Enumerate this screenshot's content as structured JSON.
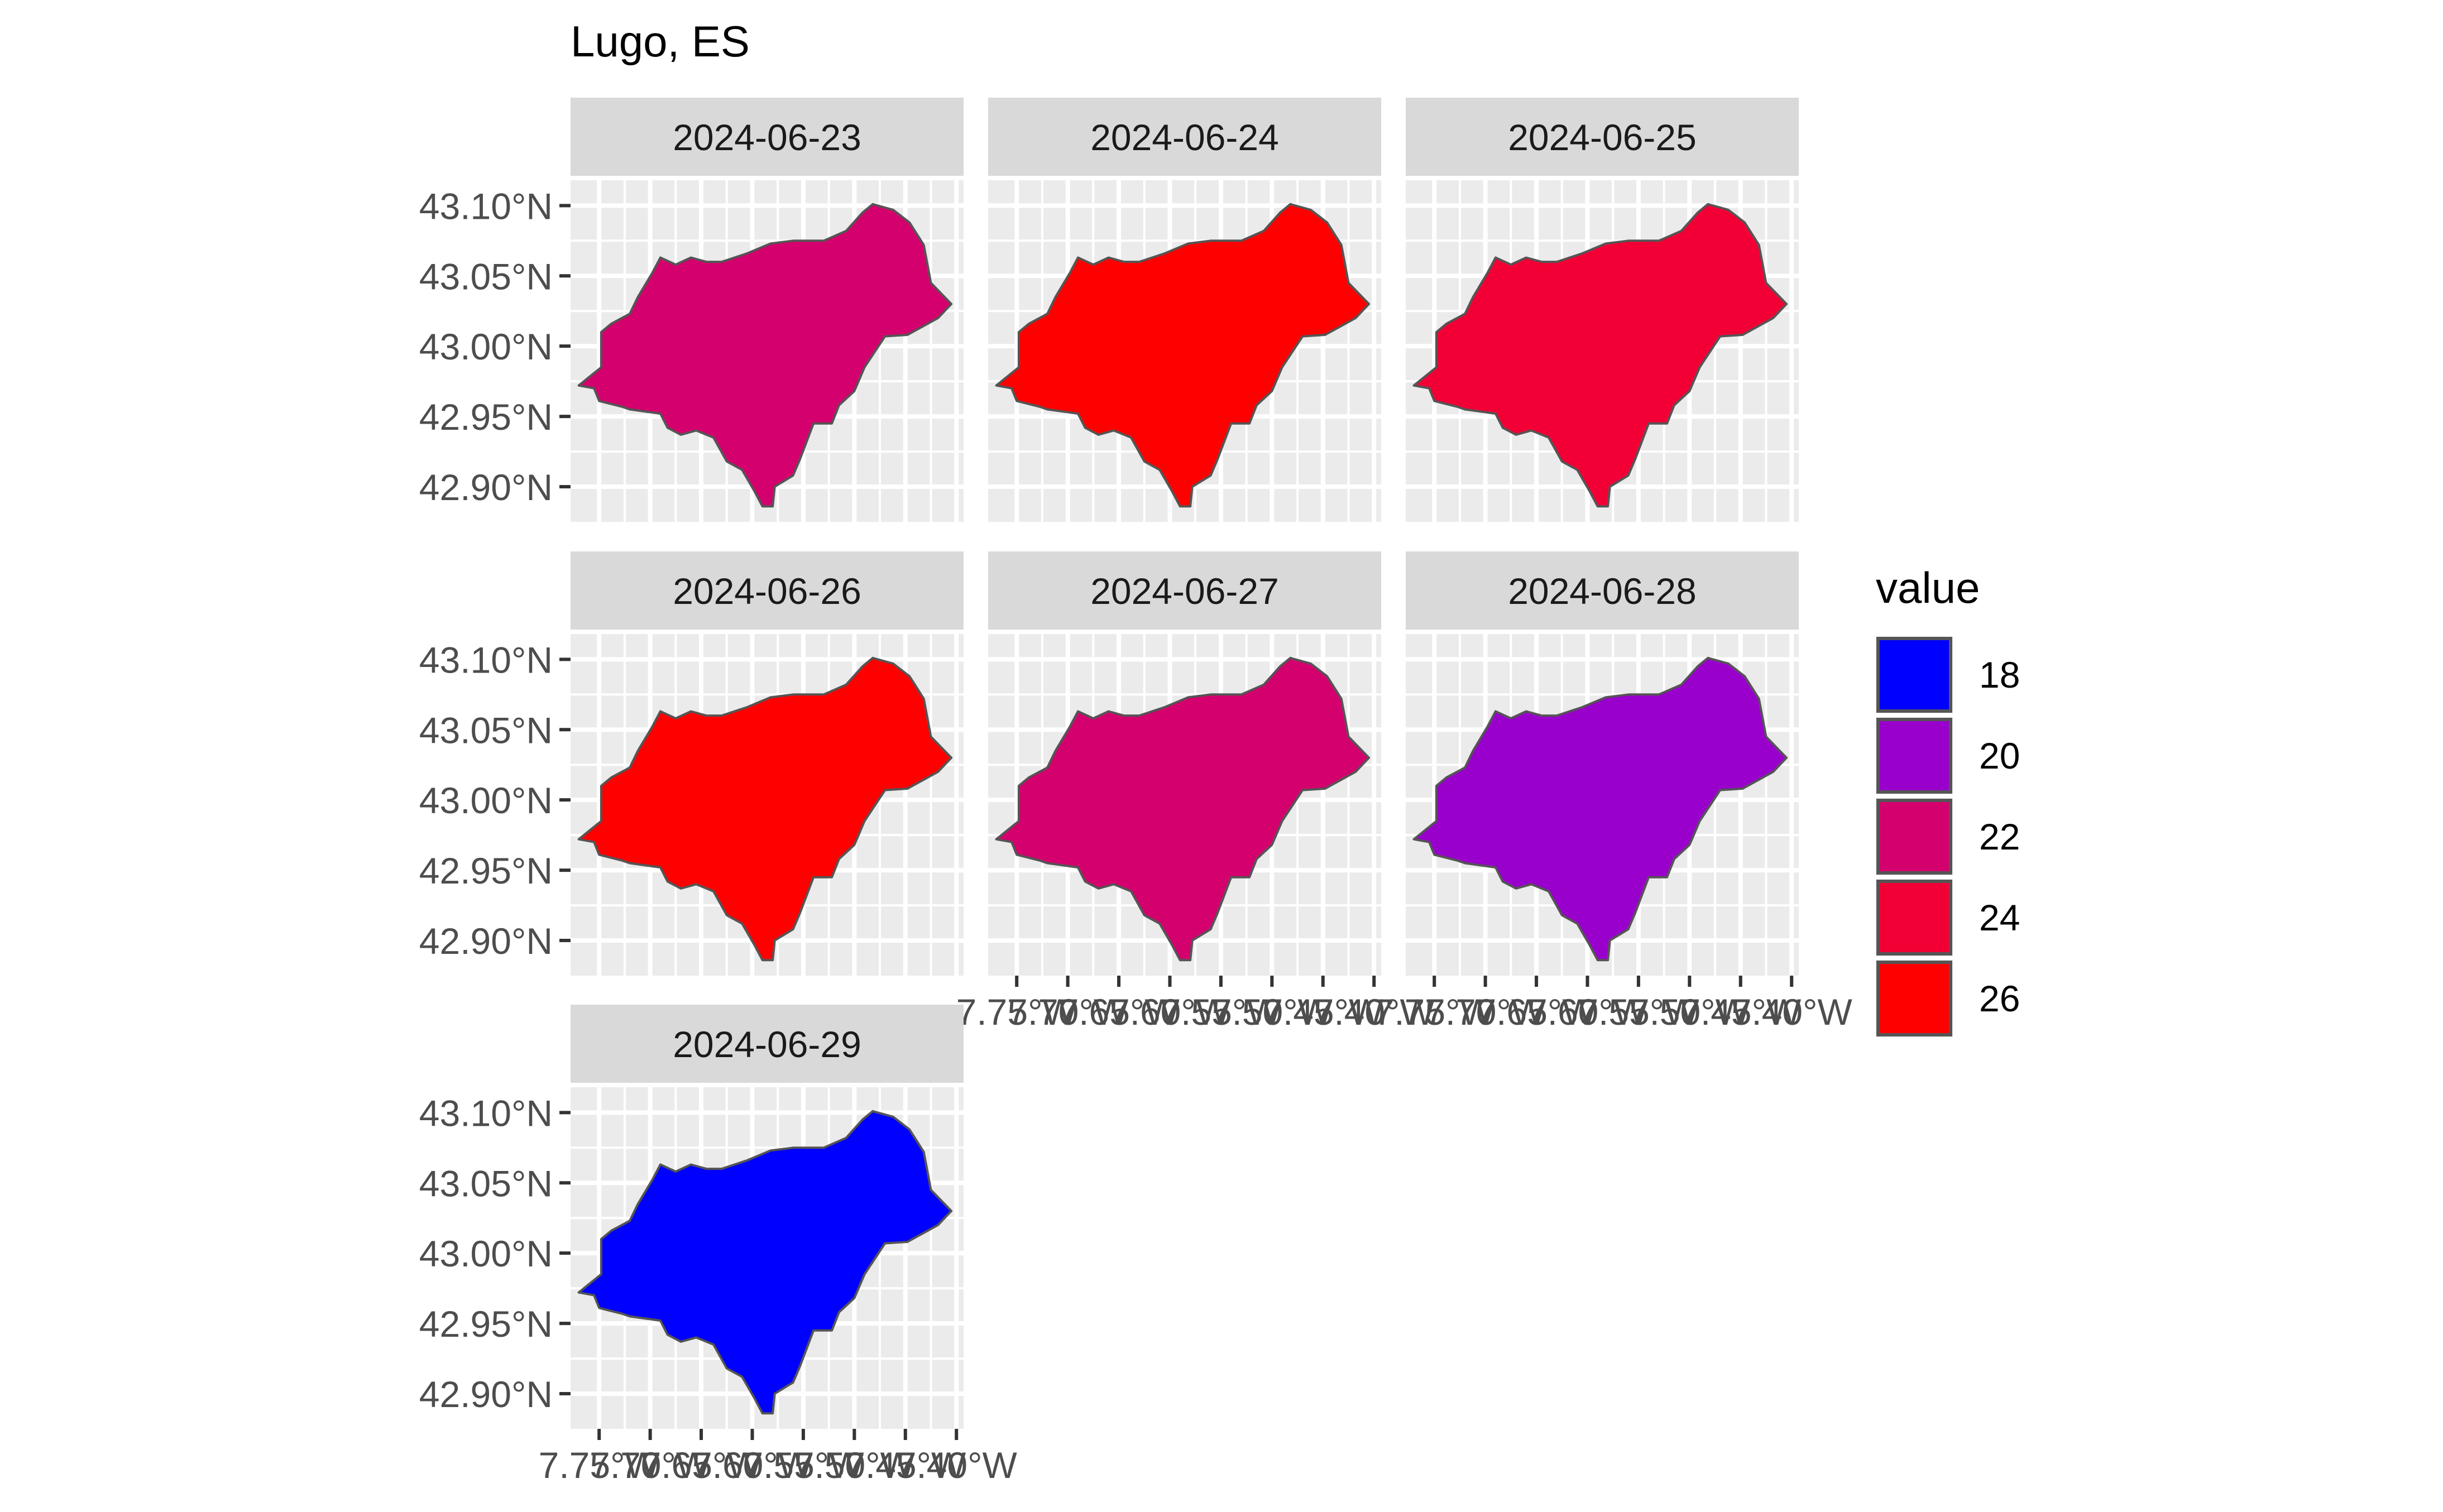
{
  "title": "Lugo, ES",
  "legend": {
    "title": "value",
    "items": [
      {
        "label": "18",
        "color": "#0000FF"
      },
      {
        "label": "20",
        "color": "#9900CC"
      },
      {
        "label": "22",
        "color": "#D4006E"
      },
      {
        "label": "24",
        "color": "#F20035"
      },
      {
        "label": "26",
        "color": "#FF0000"
      }
    ]
  },
  "chart_data": {
    "type": "choropleth-facets",
    "region": "Lugo, ES",
    "fill_variable": "value",
    "lat_ticks": [
      "43.10°N",
      "43.05°N",
      "43.00°N",
      "42.95°N",
      "42.90°N"
    ],
    "lon_ticks": [
      "7.75°W",
      "7.70°W",
      "7.65°W",
      "7.60°W",
      "7.55°W",
      "7.50°W",
      "7.45°W",
      "7.40°W"
    ],
    "facets": [
      {
        "date": "2024-06-23",
        "value": 22,
        "color": "#D4006E"
      },
      {
        "date": "2024-06-24",
        "value": 26,
        "color": "#FF0000"
      },
      {
        "date": "2024-06-25",
        "value": 24,
        "color": "#F20035"
      },
      {
        "date": "2024-06-26",
        "value": 26,
        "color": "#FF0000"
      },
      {
        "date": "2024-06-27",
        "value": 22,
        "color": "#D4006E"
      },
      {
        "date": "2024-06-28",
        "value": 20,
        "color": "#9900CC"
      },
      {
        "date": "2024-06-29",
        "value": 18,
        "color": "#0000FF"
      }
    ]
  }
}
